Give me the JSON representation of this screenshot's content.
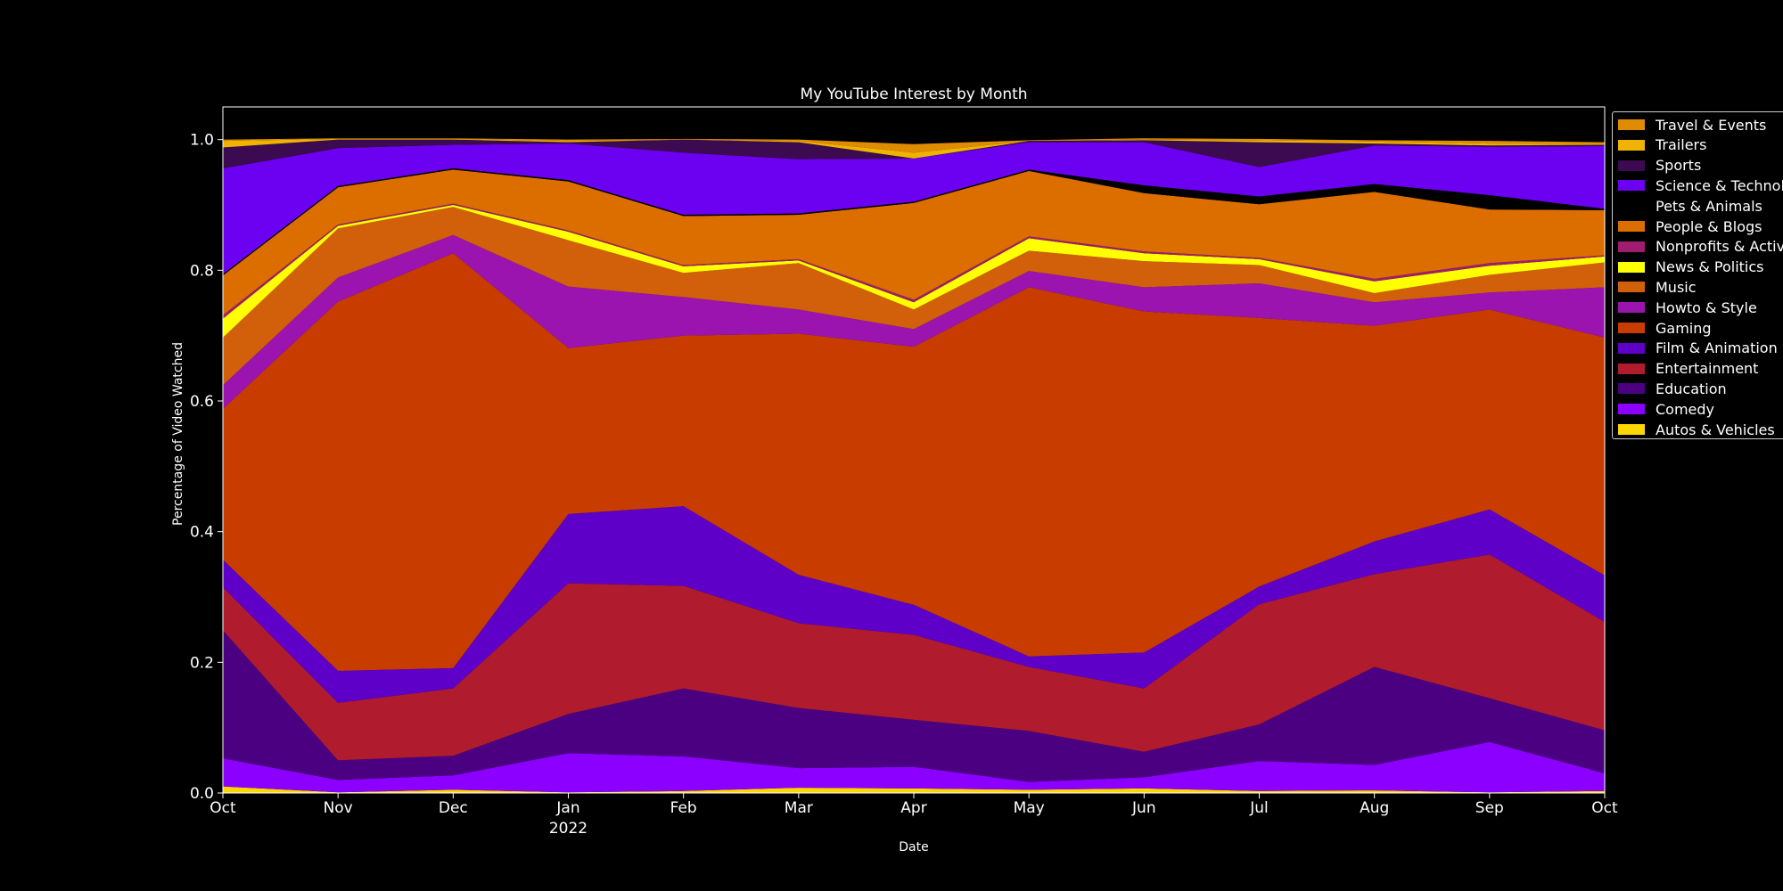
{
  "chart_data": {
    "type": "area",
    "stacked": true,
    "title": "My YouTube Interest by Month",
    "xlabel": "Date",
    "ylabel": "Percentage of Video Watched",
    "ylim": [
      0,
      1.05
    ],
    "yticks": [
      "0.0",
      "0.2",
      "0.4",
      "0.6",
      "0.8",
      "1.0"
    ],
    "x": [
      "Oct",
      "Nov",
      "Dec",
      "Jan",
      "Feb",
      "Mar",
      "Apr",
      "May",
      "Jun",
      "Jul",
      "Aug",
      "Sep",
      "Oct"
    ],
    "x_sublabels": [
      "",
      "",
      "",
      "2022",
      "",
      "",
      "",
      "",
      "",
      "",
      "",
      "",
      ""
    ],
    "grid": false,
    "legend_position": "upper right, outside plot",
    "series": [
      {
        "name": "Autos & Vehicles",
        "color": "#ffd700",
        "values": [
          0.01,
          0.001,
          0.005,
          0.001,
          0.003,
          0.008,
          0.007,
          0.005,
          0.007,
          0.003,
          0.004,
          0.001,
          0.003
        ]
      },
      {
        "name": "Comedy",
        "color": "#8b00ff",
        "values": [
          0.043,
          0.019,
          0.022,
          0.06,
          0.053,
          0.03,
          0.033,
          0.012,
          0.017,
          0.046,
          0.039,
          0.077,
          0.027
        ]
      },
      {
        "name": "Education",
        "color": "#4b0082",
        "values": [
          0.196,
          0.03,
          0.03,
          0.06,
          0.104,
          0.092,
          0.072,
          0.078,
          0.039,
          0.056,
          0.15,
          0.067,
          0.066
        ]
      },
      {
        "name": "Entertainment",
        "color": "#b01c2e",
        "values": [
          0.066,
          0.088,
          0.103,
          0.2,
          0.157,
          0.13,
          0.13,
          0.098,
          0.097,
          0.184,
          0.142,
          0.22,
          0.166
        ]
      },
      {
        "name": "Film & Animation",
        "color": "#5e00c8",
        "values": [
          0.042,
          0.049,
          0.031,
          0.106,
          0.122,
          0.074,
          0.046,
          0.016,
          0.055,
          0.027,
          0.05,
          0.069,
          0.071
        ]
      },
      {
        "name": "Gaming",
        "color": "#c83c00",
        "values": [
          0.231,
          0.565,
          0.635,
          0.254,
          0.261,
          0.369,
          0.395,
          0.565,
          0.522,
          0.411,
          0.33,
          0.306,
          0.364
        ]
      },
      {
        "name": "Howto & Style",
        "color": "#9c14b0",
        "values": [
          0.036,
          0.037,
          0.028,
          0.094,
          0.059,
          0.037,
          0.027,
          0.025,
          0.037,
          0.053,
          0.036,
          0.026,
          0.077
        ]
      },
      {
        "name": "Music",
        "color": "#d2600a",
        "values": [
          0.073,
          0.075,
          0.043,
          0.071,
          0.037,
          0.071,
          0.03,
          0.031,
          0.04,
          0.028,
          0.014,
          0.027,
          0.038
        ]
      },
      {
        "name": "News & Politics",
        "color": "#ffff00",
        "values": [
          0.029,
          0.004,
          0.003,
          0.013,
          0.01,
          0.004,
          0.011,
          0.019,
          0.012,
          0.009,
          0.018,
          0.014,
          0.009
        ]
      },
      {
        "name": "Nonprofits & Activism",
        "color": "#a01c6e",
        "values": [
          0.005,
          0.002,
          0.002,
          0.002,
          0.002,
          0.002,
          0.004,
          0.003,
          0.003,
          0.002,
          0.004,
          0.004,
          0.002
        ]
      },
      {
        "name": "People & Blogs",
        "color": "#dc6e00",
        "values": [
          0.061,
          0.057,
          0.052,
          0.075,
          0.075,
          0.068,
          0.148,
          0.1,
          0.089,
          0.082,
          0.133,
          0.082,
          0.069
        ]
      },
      {
        "name": "Pets & Animals",
        "color": "#000000",
        "values": [
          0.002,
          0.002,
          0.002,
          0.002,
          0.002,
          0.002,
          0.002,
          0.002,
          0.012,
          0.012,
          0.012,
          0.022,
          0.002
        ]
      },
      {
        "name": "Science & Technology",
        "color": "#6c00f0",
        "values": [
          0.162,
          0.058,
          0.036,
          0.056,
          0.095,
          0.083,
          0.066,
          0.042,
          0.066,
          0.045,
          0.059,
          0.074,
          0.096
        ]
      },
      {
        "name": "Sports",
        "color": "#3c0a50",
        "values": [
          0.032,
          0.013,
          0.008,
          0.002,
          0.02,
          0.026,
          0.0,
          0.002,
          0.003,
          0.038,
          0.003,
          0.002,
          0.002
        ]
      },
      {
        "name": "Trailers",
        "color": "#f0b400",
        "values": [
          0.01,
          0.001,
          0.001,
          0.002,
          0.0,
          0.002,
          0.009,
          0.0,
          0.001,
          0.003,
          0.003,
          0.003,
          0.002
        ]
      },
      {
        "name": "Travel & Events",
        "color": "#e08c00",
        "values": [
          0.002,
          0.001,
          0.001,
          0.002,
          0.001,
          0.002,
          0.013,
          0.001,
          0.002,
          0.002,
          0.002,
          0.004,
          0.002
        ]
      }
    ]
  }
}
